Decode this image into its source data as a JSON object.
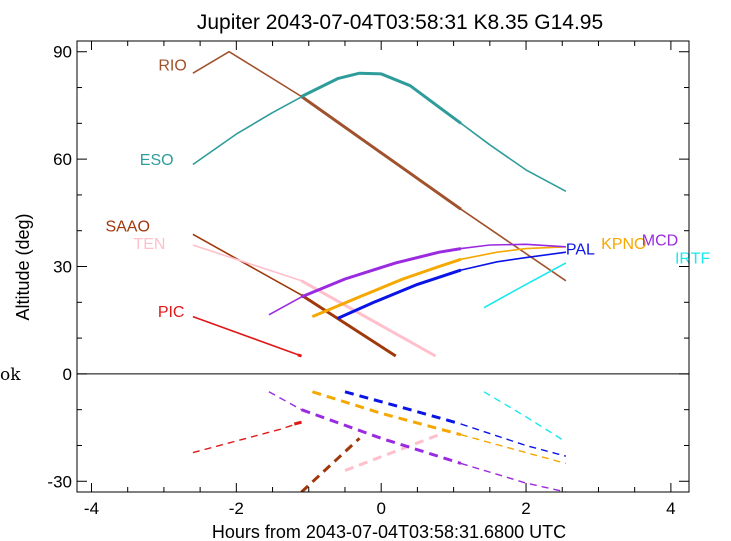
{
  "chart_data": {
    "type": "line",
    "title": "Jupiter 2043-07-04T03:58:31   K8.35   G14.95",
    "xlabel": "Hours from 2043-07-04T03:58:31.6800 UTC",
    "ylabel": "Altitude (deg)",
    "xlim": [
      -4.2,
      4.25
    ],
    "ylim": [
      -33,
      93
    ],
    "xticks": [
      -4,
      -2,
      0,
      2,
      4
    ],
    "xtick_labels": [
      "-4",
      "-2",
      "0",
      "2",
      "4"
    ],
    "yticks": [
      -30,
      0,
      30,
      60,
      90
    ],
    "ytick_labels": [
      "-30",
      "0",
      "30",
      "60",
      "90"
    ],
    "zero_line": true,
    "grid": false,
    "left_edge_text": "ok",
    "series": [
      {
        "name": "RIO",
        "color": "#a0522d",
        "label_pos": [
          -2.88,
          86.5
        ],
        "lines": [
          {
            "x": [
              -2.6,
              -2.1,
              -1.1,
              1.1,
              2.55
            ],
            "y": [
              84,
              90,
              77.5,
              46,
              26
            ],
            "width": 1.6
          },
          {
            "x": [
              -1.1,
              1.1
            ],
            "y": [
              77.5,
              46
            ],
            "width": 3
          }
        ]
      },
      {
        "name": "ESO",
        "color": "#2e9c9a",
        "label_pos": [
          -3.1,
          60
        ],
        "lines": [
          {
            "x": [
              -2.6,
              -2.0,
              -1.5,
              -1.0,
              -0.6,
              -0.3,
              0.0,
              0.4,
              0.8,
              1.1,
              1.5,
              2.0,
              2.55
            ],
            "y": [
              58.5,
              67,
              73,
              78.5,
              82.5,
              84,
              83.8,
              80.5,
              74.5,
              70,
              64,
              57,
              51
            ],
            "width": 1.6
          },
          {
            "x": [
              -1.1,
              -0.6,
              -0.3,
              0.0,
              0.4,
              0.8,
              1.1
            ],
            "y": [
              77.5,
              82.5,
              84,
              83.8,
              80.5,
              74.5,
              70
            ],
            "width": 3
          }
        ]
      },
      {
        "name": "SAAO",
        "color": "#a0380b",
        "label_pos": [
          -3.5,
          41.5
        ],
        "lines": [
          {
            "x": [
              -2.6,
              -1.1,
              0.2
            ],
            "y": [
              39,
              22,
              5
            ],
            "width": 1.6
          },
          {
            "x": [
              -1.1,
              0.2
            ],
            "y": [
              22,
              5
            ],
            "width": 3
          },
          {
            "x": [
              -1.1,
              -0.3
            ],
            "y": [
              -33,
              -18
            ],
            "width": 3,
            "dash": true
          }
        ]
      },
      {
        "name": "TEN",
        "color": "#ffc0cb",
        "label_pos": [
          -3.2,
          36.5
        ],
        "lines": [
          {
            "x": [
              -2.6,
              -1.1,
              0.75
            ],
            "y": [
              36,
              26,
              5
            ],
            "width": 1.6
          },
          {
            "x": [
              -1.1,
              0.75
            ],
            "y": [
              26,
              5
            ],
            "width": 3
          },
          {
            "x": [
              -0.5,
              0.8
            ],
            "y": [
              -27,
              -17
            ],
            "width": 3,
            "dash": true
          }
        ]
      },
      {
        "name": "PIC",
        "color": "#e01818",
        "label_pos": [
          -2.9,
          17.5
        ],
        "lines": [
          {
            "x": [
              -2.6,
              -1.1
            ],
            "y": [
              16,
              5
            ],
            "width": 1.6
          },
          {
            "x": [
              -1.15,
              -1.1
            ],
            "y": [
              5.3,
              5
            ],
            "width": 3
          },
          {
            "x": [
              -2.6,
              -1.4,
              -1.1
            ],
            "y": [
              -22,
              -15.5,
              -13.5
            ],
            "width": 1.4,
            "dash": true
          },
          {
            "x": [
              -1.2,
              -1.1
            ],
            "y": [
              -14,
              -13.5
            ],
            "width": 3,
            "dash": true
          }
        ]
      },
      {
        "name": "PAL",
        "color": "#0a14e6",
        "label_pos": [
          2.75,
          35
        ],
        "lines": [
          {
            "x": [
              -0.6,
              -0.1,
              0.5,
              1.1,
              1.6,
              2.0,
              2.55
            ],
            "y": [
              15.5,
              20,
              25,
              29,
              31.3,
              32.5,
              34
            ],
            "width": 1.6
          },
          {
            "x": [
              -0.6,
              -0.1,
              0.5,
              1.1
            ],
            "y": [
              15.5,
              20,
              25,
              29
            ],
            "width": 3
          },
          {
            "x": [
              -0.5,
              0.4,
              1.1
            ],
            "y": [
              -5,
              -10,
              -14
            ],
            "width": 3,
            "dash": true
          },
          {
            "x": [
              1.1,
              2.0,
              2.55
            ],
            "y": [
              -14,
              -20,
              -23
            ],
            "width": 1.4,
            "dash": true
          }
        ]
      },
      {
        "name": "KPNO",
        "color": "#f5a800",
        "label_pos": [
          3.35,
          36.5
        ],
        "lines": [
          {
            "x": [
              -0.95,
              -0.3,
              0.3,
              0.8,
              1.1,
              1.6,
              2.0,
              2.55
            ],
            "y": [
              16,
              21.5,
              26.5,
              30,
              32,
              34,
              35,
              35.5
            ],
            "width": 1.6
          },
          {
            "x": [
              -0.95,
              -0.3,
              0.3,
              0.8,
              1.1
            ],
            "y": [
              16,
              21.5,
              26.5,
              30,
              32
            ],
            "width": 3
          },
          {
            "x": [
              -0.95,
              0.0,
              1.1
            ],
            "y": [
              -5,
              -11,
              -17
            ],
            "width": 3,
            "dash": true
          },
          {
            "x": [
              1.1,
              2.0,
              2.55
            ],
            "y": [
              -17,
              -22,
              -25
            ],
            "width": 1.4,
            "dash": true
          }
        ]
      },
      {
        "name": "MCD",
        "color": "#9a2be0",
        "label_pos": [
          3.85,
          37.5
        ],
        "lines": [
          {
            "x": [
              -1.55,
              -1.1,
              -0.5,
              0.2,
              0.8,
              1.1,
              1.5,
              2.0,
              2.55
            ],
            "y": [
              16.5,
              21.5,
              26.5,
              31,
              34,
              35,
              36,
              36.2,
              35.5
            ],
            "width": 1.6
          },
          {
            "x": [
              -1.1,
              -0.5,
              0.2,
              0.8,
              1.1
            ],
            "y": [
              21.5,
              26.5,
              31,
              34,
              35
            ],
            "width": 3
          },
          {
            "x": [
              -1.55,
              -1.1
            ],
            "y": [
              -5,
              -10
            ],
            "width": 1.4,
            "dash": true
          },
          {
            "x": [
              -1.1,
              0.0,
              1.1
            ],
            "y": [
              -10,
              -18,
              -25
            ],
            "width": 3,
            "dash": true
          },
          {
            "x": [
              1.1,
              2.0,
              2.55
            ],
            "y": [
              -25,
              -30.5,
              -33
            ],
            "width": 1.4,
            "dash": true
          }
        ]
      },
      {
        "name": "IRTF",
        "color": "#19e8ef",
        "label_pos": [
          4.3,
          32.5
        ],
        "lines": [
          {
            "x": [
              1.42,
              2.0,
              2.55
            ],
            "y": [
              18.5,
              25,
              31
            ],
            "width": 1.6
          },
          {
            "x": [
              1.42,
              2.0,
              2.55
            ],
            "y": [
              -5,
              -12,
              -19
            ],
            "width": 1.4,
            "dash": true
          }
        ]
      }
    ]
  }
}
